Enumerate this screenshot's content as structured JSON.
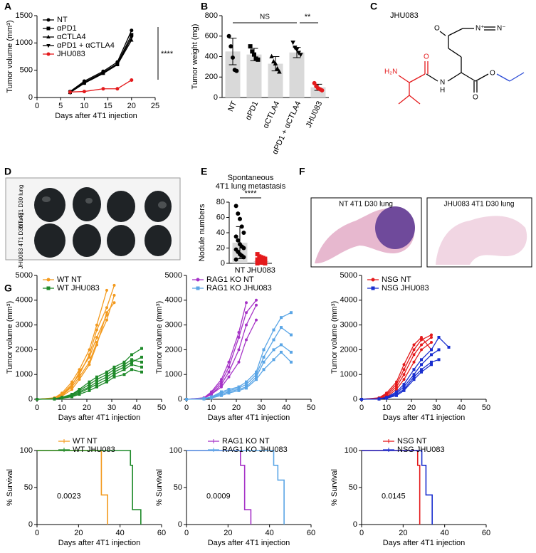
{
  "chart_data": [
    {
      "type": "line",
      "panel": "A",
      "x": [
        7,
        10,
        14,
        17,
        20
      ],
      "xlim": [
        0,
        25
      ],
      "xticks": [
        0,
        5,
        10,
        15,
        20,
        25
      ],
      "ylim": [
        0,
        1500
      ],
      "yticks": [
        0,
        500,
        1000,
        1500
      ],
      "xlabel": "Days after 4T1 injection",
      "ylabel": "Tumor volume (mm³)",
      "legend": "upper left",
      "marker_size": 2.5,
      "series": [
        {
          "name": "NT",
          "color": "#000000",
          "marker": "circle",
          "values": [
            110,
            300,
            480,
            650,
            1230
          ]
        },
        {
          "name": "αPD1",
          "color": "#000000",
          "marker": "square",
          "values": [
            100,
            280,
            460,
            620,
            1150
          ]
        },
        {
          "name": "αCTLA4",
          "color": "#000000",
          "marker": "triangle-up",
          "values": [
            90,
            260,
            440,
            600,
            1050
          ]
        },
        {
          "name": "αPD1 + αCTLA4",
          "color": "#000000",
          "marker": "triangle-down",
          "values": [
            90,
            270,
            450,
            610,
            1100
          ]
        },
        {
          "name": "JHU083",
          "color": "#e41a1c",
          "marker": "circle",
          "values": [
            100,
            110,
            160,
            160,
            320
          ]
        }
      ],
      "annotations": [
        "****"
      ]
    },
    {
      "type": "bar",
      "panel": "B",
      "categories": [
        "NT",
        "αPD1",
        "αCTLA4",
        "αPD1 + αCTLA4",
        "JHU083"
      ],
      "values": [
        450,
        420,
        330,
        440,
        100
      ],
      "errors": [
        130,
        60,
        70,
        50,
        30
      ],
      "points": [
        [
          600,
          500,
          390,
          270,
          260
        ],
        [
          500,
          450,
          420,
          380,
          370
        ],
        [
          400,
          350,
          330,
          280,
          250
        ],
        [
          540,
          490,
          470,
          440,
          420
        ],
        [
          140,
          110,
          90,
          80,
          70
        ]
      ],
      "bar_color": "#d9d9d9",
      "point_colors": [
        "#000000",
        "#000000",
        "#000000",
        "#000000",
        "#e41a1c"
      ],
      "markers": [
        "circle",
        "square",
        "triangle-up",
        "triangle-down",
        "circle"
      ],
      "ylim": [
        0,
        800
      ],
      "yticks": [
        0,
        200,
        400,
        600,
        800
      ],
      "ylabel": "Tumor weight (mg)",
      "annotations": [
        "NS",
        "**"
      ]
    },
    {
      "type": "bar",
      "panel": "E",
      "title": [
        "Spontaneous",
        "4T1 lung metastasis"
      ],
      "categories": [
        "NT",
        "JHU083"
      ],
      "values": [
        27,
        3
      ],
      "errors": [
        21,
        2
      ],
      "points": [
        [
          75,
          65,
          58,
          48,
          40,
          35,
          30,
          25,
          22,
          20,
          18,
          15,
          12,
          10,
          8,
          5
        ],
        [
          12,
          9,
          8,
          7,
          6,
          5,
          5,
          4,
          3,
          3,
          2,
          2,
          1,
          1,
          0,
          0
        ]
      ],
      "bar_color": "#d9d9d9",
      "point_colors": [
        "#000000",
        "#e41a1c"
      ],
      "markers": [
        "circle",
        "square"
      ],
      "ylim": [
        0,
        80
      ],
      "yticks": [
        0,
        20,
        40,
        60,
        80
      ],
      "ylabel": "Nodule numbers",
      "annotations": [
        "****"
      ]
    },
    {
      "type": "line",
      "x": [
        0,
        7,
        10,
        14,
        17,
        21,
        24,
        28,
        31,
        35,
        38,
        42
      ],
      "xlim": [
        0,
        50
      ],
      "xticks": [
        0,
        10,
        20,
        30,
        40,
        50
      ],
      "ylim": [
        0,
        5000
      ],
      "yticks": [
        0,
        1000,
        2000,
        3000,
        4000,
        5000
      ],
      "xlabel": "Days after 4T1 injection",
      "ylabel": "Tumor volume (mm³)",
      "legend": "upper left",
      "marker_size": 2,
      "series": [
        {
          "name": "WT NT",
          "color": "#f39a1e",
          "marker": "circle",
          "values": [
            [
              0,
              50,
              200,
              600,
              1000,
              1800,
              2800,
              3700,
              4600,
              null,
              null,
              null
            ],
            [
              0,
              40,
              150,
              500,
              900,
              1500,
              2300,
              3200,
              4200,
              null,
              null,
              null
            ],
            [
              0,
              60,
              250,
              700,
              1200,
              2000,
              3000,
              4400,
              null,
              null,
              null,
              null
            ],
            [
              0,
              30,
              120,
              400,
              800,
              1400,
              2200,
              3500,
              3900,
              null,
              null,
              null
            ],
            [
              0,
              50,
              180,
              550,
              1100,
              1700,
              2500,
              3400,
              null,
              null,
              null,
              null
            ]
          ]
        },
        {
          "name": "WT JHU083",
          "color": "#1f8a2a",
          "marker": "square",
          "values": [
            [
              0,
              20,
              80,
              200,
              400,
              700,
              900,
              1100,
              1300,
              1500,
              1800,
              2050
            ],
            [
              0,
              10,
              60,
              150,
              300,
              500,
              700,
              900,
              1100,
              1300,
              1500,
              1700
            ],
            [
              0,
              20,
              70,
              180,
              350,
              600,
              800,
              1000,
              1200,
              1400,
              1600,
              1500
            ],
            [
              0,
              15,
              50,
              120,
              250,
              450,
              600,
              800,
              1000,
              1200,
              1400,
              1300
            ],
            [
              0,
              10,
              40,
              100,
              200,
              350,
              500,
              700,
              900,
              1000,
              1200,
              1100
            ]
          ]
        }
      ]
    },
    {
      "type": "line",
      "x": [
        0,
        7,
        10,
        14,
        17,
        21,
        24,
        28,
        31,
        35,
        38,
        42
      ],
      "xlim": [
        0,
        50
      ],
      "xticks": [
        0,
        10,
        20,
        30,
        40,
        50
      ],
      "ylim": [
        0,
        5000
      ],
      "yticks": [
        0,
        1000,
        2000,
        3000,
        4000,
        5000
      ],
      "xlabel": "Days after 4T1 injection",
      "ylabel": "Tumor volume (mm³)",
      "legend": "upper left",
      "marker_size": 2,
      "series": [
        {
          "name": "RAG1 KO NT",
          "color": "#a633c7",
          "marker": "circle",
          "values": [
            [
              0,
              50,
              250,
              700,
              1300,
              2500,
              3500,
              4000,
              null,
              null,
              null,
              null
            ],
            [
              0,
              60,
              300,
              800,
              1500,
              2700,
              3900,
              null,
              null,
              null,
              null,
              null
            ],
            [
              0,
              40,
              200,
              600,
              1100,
              2000,
              3000,
              3800,
              null,
              null,
              null,
              null
            ],
            [
              0,
              50,
              200,
              500,
              900,
              1500,
              2400,
              3200,
              null,
              null,
              null,
              null
            ]
          ]
        },
        {
          "name": "RAG1 KO JHU083",
          "color": "#5ba6e6",
          "marker": "square",
          "values": [
            [
              0,
              30,
              100,
              300,
              400,
              500,
              700,
              1100,
              2000,
              2800,
              3300,
              3500
            ],
            [
              0,
              20,
              80,
              250,
              350,
              450,
              600,
              1000,
              1700,
              2400,
              2900,
              2600
            ],
            [
              0,
              20,
              70,
              200,
              300,
              400,
              500,
              900,
              1500,
              2000,
              2200,
              1900
            ],
            [
              0,
              10,
              50,
              150,
              250,
              350,
              450,
              800,
              1200,
              1600,
              1900,
              1500
            ]
          ]
        }
      ]
    },
    {
      "type": "line",
      "x": [
        0,
        7,
        10,
        14,
        17,
        21,
        24,
        28,
        31,
        35
      ],
      "xlim": [
        0,
        50
      ],
      "xticks": [
        0,
        10,
        20,
        30,
        40,
        50
      ],
      "ylim": [
        0,
        5000
      ],
      "yticks": [
        0,
        1000,
        2000,
        3000,
        4000,
        5000
      ],
      "xlabel": "Days after 4T1 injection",
      "ylabel": "Tumor volume (mm³)",
      "legend": "upper left",
      "marker_size": 2,
      "series": [
        {
          "name": "NSG NT",
          "color": "#e41a1c",
          "marker": "circle",
          "values": [
            [
              0,
              50,
              200,
              600,
              1200,
              2000,
              2400,
              2600,
              null,
              null
            ],
            [
              0,
              40,
              150,
              500,
              1000,
              1800,
              2200,
              2500,
              null,
              null
            ],
            [
              0,
              60,
              250,
              700,
              1400,
              2200,
              2500,
              2000,
              null,
              null
            ],
            [
              0,
              30,
              100,
              400,
              800,
              1500,
              2000,
              2300,
              null,
              null
            ]
          ]
        },
        {
          "name": "NSG JHU083",
          "color": "#1a2fcf",
          "marker": "square",
          "values": [
            [
              0,
              20,
              80,
              300,
              600,
              1200,
              1600,
              2000,
              2500,
              2100
            ],
            [
              0,
              15,
              60,
              250,
              500,
              1000,
              1400,
              1800,
              2000,
              null
            ],
            [
              0,
              10,
              50,
              200,
              400,
              900,
              1200,
              1500,
              1600,
              null
            ],
            [
              0,
              10,
              40,
              150,
              350,
              800,
              1100,
              1400,
              null,
              null
            ]
          ]
        }
      ]
    },
    {
      "type": "step",
      "xlim": [
        0,
        60
      ],
      "xticks": [
        0,
        20,
        40,
        60
      ],
      "ylim": [
        0,
        100
      ],
      "yticks": [
        0,
        50,
        100
      ],
      "xlabel": "Days after 4T1 injection",
      "ylabel": "% Survival",
      "legend": "upper left",
      "series": [
        {
          "name": "WT NT",
          "color": "#f39a1e",
          "x": [
            0,
            31,
            34
          ],
          "values": [
            100,
            40,
            0
          ]
        },
        {
          "name": "WT JHU083",
          "color": "#1f8a2a",
          "x": [
            0,
            45,
            46,
            50
          ],
          "values": [
            100,
            80,
            20,
            0
          ]
        }
      ],
      "annotations": [
        "0.0023"
      ]
    },
    {
      "type": "step",
      "xlim": [
        0,
        60
      ],
      "xticks": [
        0,
        20,
        40,
        60
      ],
      "ylim": [
        0,
        100
      ],
      "yticks": [
        0,
        50,
        100
      ],
      "xlabel": "Days after 4T1 injection",
      "ylabel": "% Survival",
      "legend": "upper left",
      "series": [
        {
          "name": "RAG1 KO NT",
          "color": "#a633c7",
          "x": [
            0,
            26,
            28,
            31
          ],
          "values": [
            100,
            80,
            20,
            0
          ]
        },
        {
          "name": "RAG1 KO JHU083",
          "color": "#5ba6e6",
          "x": [
            0,
            42,
            44,
            47
          ],
          "values": [
            100,
            80,
            60,
            0
          ]
        }
      ],
      "annotations": [
        "0.0009"
      ]
    },
    {
      "type": "step",
      "xlim": [
        0,
        60
      ],
      "xticks": [
        0,
        20,
        40,
        60
      ],
      "ylim": [
        0,
        100
      ],
      "yticks": [
        0,
        50,
        100
      ],
      "xlabel": "Days after 4T1 injection",
      "ylabel": "% Survival",
      "legend": "upper left",
      "series": [
        {
          "name": "NSG NT",
          "color": "#e41a1c",
          "x": [
            0,
            27,
            28
          ],
          "values": [
            100,
            80,
            0
          ]
        },
        {
          "name": "NSG JHU083",
          "color": "#1a2fcf",
          "x": [
            0,
            29,
            31,
            34
          ],
          "values": [
            100,
            80,
            40,
            0
          ]
        }
      ],
      "annotations": [
        "0.0145"
      ]
    }
  ],
  "structure": {
    "panel": "C",
    "title": "JHU083",
    "atoms": [
      "H₂N",
      "O",
      "N",
      "H",
      "O",
      "O",
      "O",
      "N⁺",
      "N⁻"
    ]
  },
  "photo_panels": [
    {
      "panel": "D",
      "labels": [
        "NT 4T1 D30 lung",
        "JHU083 4T1 D30 lung"
      ]
    },
    {
      "panel": "F",
      "captions": [
        "NT 4T1 D30 lung",
        "JHU083 4T1 D30 lung"
      ]
    }
  ],
  "panel_g": "G"
}
